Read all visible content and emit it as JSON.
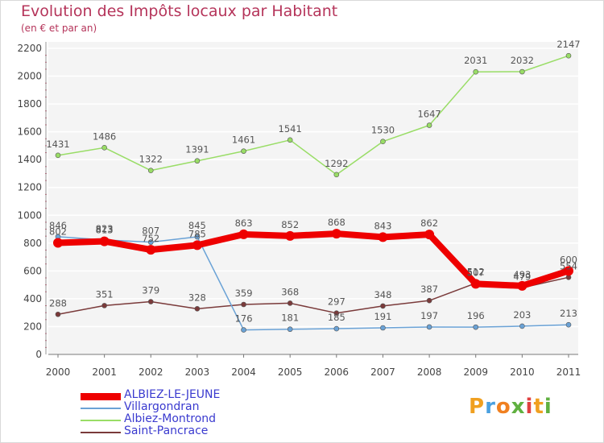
{
  "chart_data": {
    "type": "line",
    "title": "Evolution des Impôts locaux par Habitant",
    "subtitle": "(en € et par an)",
    "x": [
      "2000",
      "2001",
      "2002",
      "2003",
      "2004",
      "2005",
      "2006",
      "2007",
      "2008",
      "2009",
      "2010",
      "2011"
    ],
    "ylim": [
      0,
      2200
    ],
    "yticks": [
      0,
      200,
      400,
      600,
      800,
      1000,
      1200,
      1400,
      1600,
      1800,
      2000,
      2200
    ],
    "grid": true,
    "legend_position": "bottom-left",
    "series": [
      {
        "name": "ALBIEZ-LE-JEUNE",
        "color": "#ee0000",
        "values": [
          802,
          813,
          752,
          785,
          863,
          852,
          868,
          843,
          862,
          507,
          493,
          600
        ],
        "labels": [
          "802",
          "813",
          "752",
          "785",
          "863",
          "852",
          "868",
          "843",
          "862",
          "507",
          "493",
          "600"
        ]
      },
      {
        "name": "Villargondran",
        "color": "#6aa2d6",
        "values": [
          846,
          823,
          807,
          845,
          176,
          181,
          185,
          191,
          197,
          196,
          203,
          213
        ],
        "labels": [
          "846",
          "823",
          "807",
          "845",
          "176",
          "181",
          "185",
          "191",
          "197",
          "196",
          "203",
          "213"
        ]
      },
      {
        "name": "Albiez-Montrond",
        "color": "#99dd66",
        "values": [
          1431,
          1486,
          1322,
          1391,
          1461,
          1541,
          1292,
          1530,
          1647,
          2031,
          2032,
          2147
        ],
        "labels": [
          "1431",
          "1486",
          "1322",
          "1391",
          "1461",
          "1541",
          "1292",
          "1530",
          "1647",
          "2031",
          "2032",
          "2147"
        ]
      },
      {
        "name": "Saint-Pancrace",
        "color": "#7a3a3a",
        "values": [
          288,
          351,
          379,
          328,
          359,
          368,
          297,
          348,
          387,
          512,
          479,
          554
        ],
        "labels": [
          "288",
          "351",
          "379",
          "328",
          "359",
          "368",
          "297",
          "348",
          "387",
          "512",
          "479",
          "554"
        ]
      }
    ]
  },
  "logo": {
    "letters": [
      "P",
      "r",
      "o",
      "x",
      "i",
      "t",
      "i"
    ],
    "colors": [
      "#f0a020",
      "#4aa0e0",
      "#f08020",
      "#60b040",
      "#e04040",
      "#f0a020",
      "#60b040"
    ]
  }
}
